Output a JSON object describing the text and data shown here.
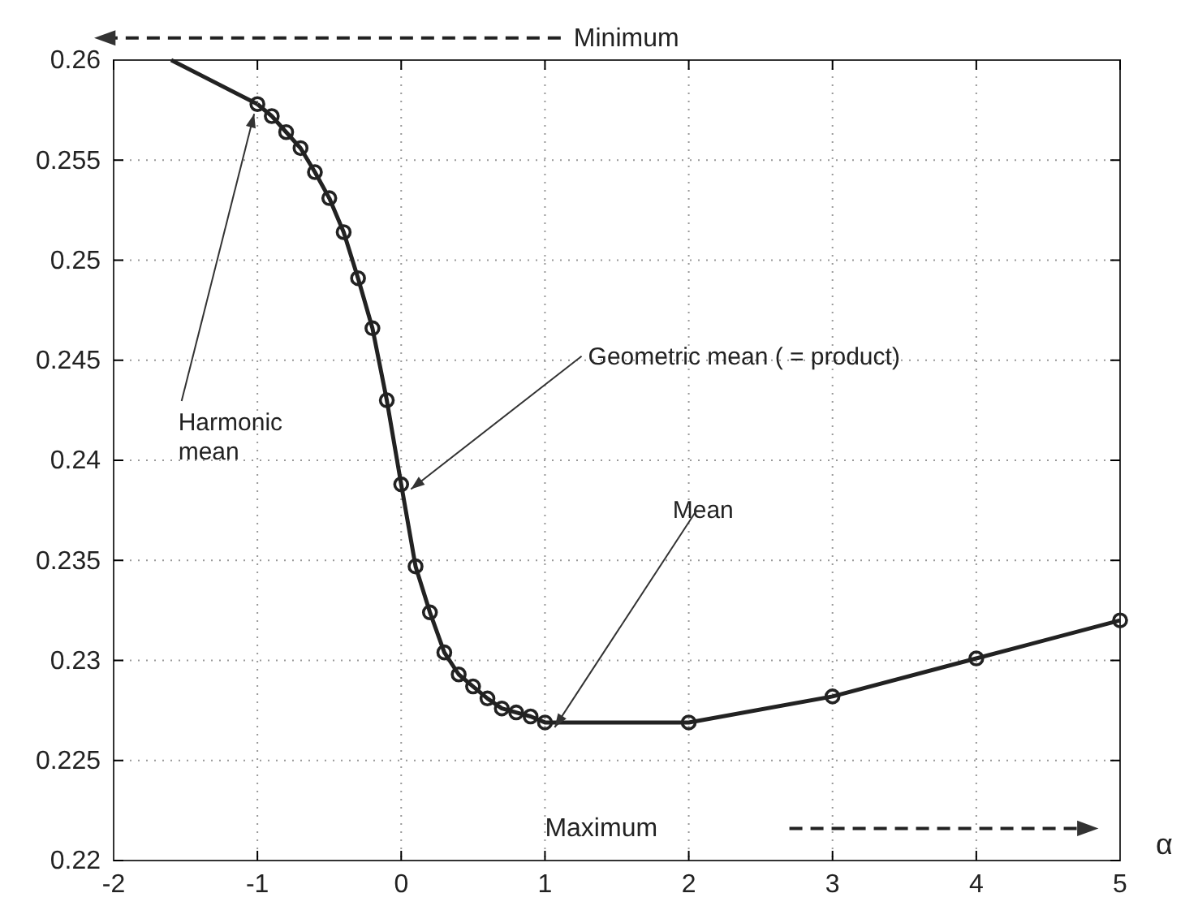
{
  "chart_data": {
    "type": "line",
    "xlabel": "α",
    "xlim": [
      -2,
      5
    ],
    "xticks": [
      -2,
      -1,
      0,
      1,
      2,
      3,
      4,
      5
    ],
    "ylim": [
      0.22,
      0.26
    ],
    "yticks": [
      0.22,
      0.225,
      0.23,
      0.235,
      0.24,
      0.245,
      0.25,
      0.255,
      0.26
    ],
    "grid": true,
    "line_style": "solid",
    "series": [
      {
        "color": "#222222",
        "x": [
          -1.6,
          -1
        ],
        "values": [
          0.26,
          0.2578
        ]
      },
      {
        "color": "#222222",
        "marker": "circle",
        "x": [
          -1,
          -0.9,
          -0.8,
          -0.7,
          -0.6,
          -0.5,
          -0.4,
          -0.3,
          -0.2,
          -0.1,
          0,
          0.1,
          0.2,
          0.3,
          0.4,
          0.5,
          0.6,
          0.7,
          0.8,
          0.9,
          1,
          2,
          3,
          4,
          5
        ],
        "values": [
          0.2578,
          0.2572,
          0.2564,
          0.2556,
          0.2544,
          0.2531,
          0.2514,
          0.2491,
          0.2466,
          0.243,
          0.2388,
          0.2347,
          0.2324,
          0.2304,
          0.2293,
          0.2287,
          0.2281,
          0.2276,
          0.2274,
          0.2272,
          0.2269,
          0.2269,
          0.2282,
          0.2301,
          0.232
        ]
      }
    ],
    "annotations": [
      {
        "text": "Harmonic mean",
        "x": -1,
        "y": 0.2578
      },
      {
        "text": "Geometric mean ( = product)",
        "x": 0,
        "y": 0.2388
      },
      {
        "text": "Mean",
        "x": 1,
        "y": 0.2269
      },
      "Minimum",
      "Maximum"
    ]
  }
}
